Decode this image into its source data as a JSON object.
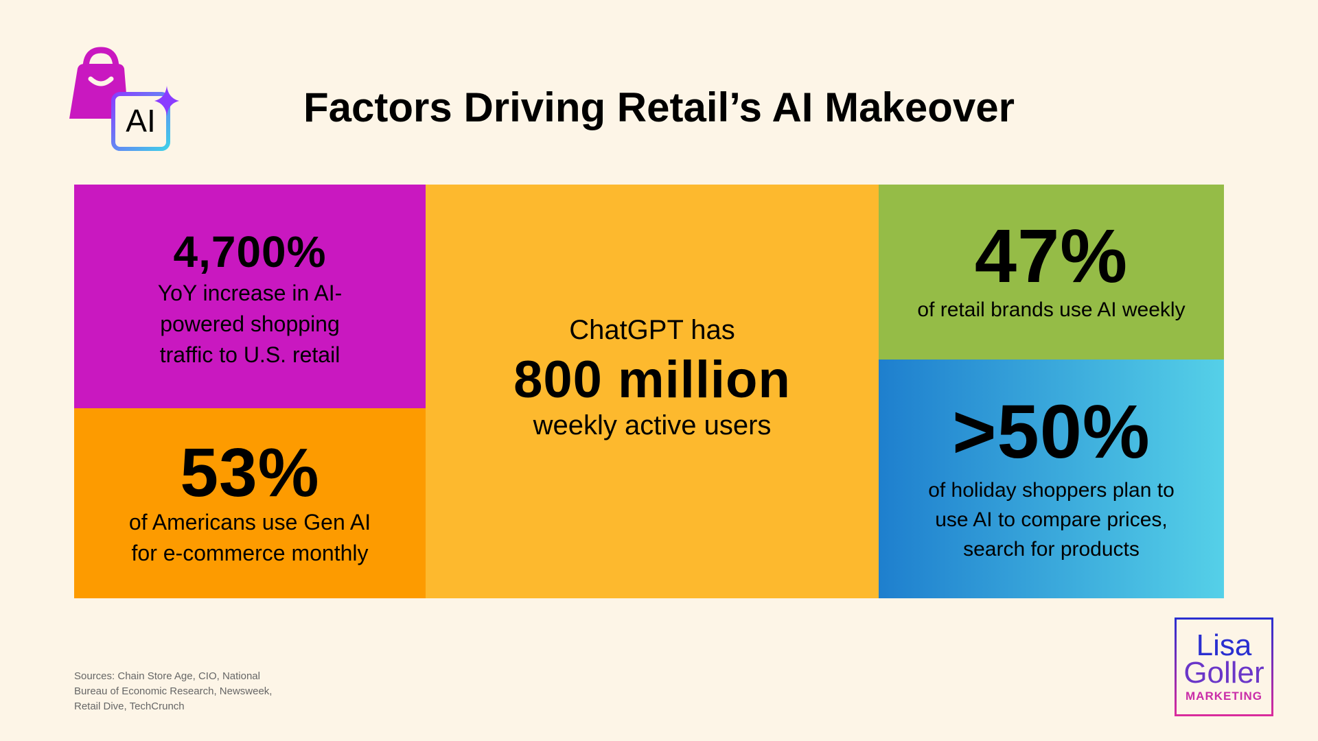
{
  "header": {
    "title": "Factors Driving Retail’s AI Makeover",
    "icon_label": "AI"
  },
  "stats": {
    "traffic": {
      "figure": "4,700%",
      "lines": [
        "YoY increase in AI-",
        "powered shopping",
        "traffic to U.S. retail"
      ]
    },
    "americans": {
      "figure": "53%",
      "lines": [
        "of Americans use Gen AI",
        "for e-commerce monthly"
      ]
    },
    "chatgpt": {
      "lead": "ChatGPT has",
      "figure": "800 million",
      "tail": "weekly active users"
    },
    "brands": {
      "figure": "47%",
      "lines": [
        "of retail brands use AI weekly"
      ]
    },
    "shoppers": {
      "figure": ">50%",
      "lines": [
        "of holiday shoppers plan to",
        "use AI to compare prices,",
        "search for products"
      ]
    }
  },
  "footer": {
    "sources": [
      "Sources: Chain Store Age, CIO, National",
      "Bureau of Economic Research, Newsweek,",
      "Retail Dive, TechCrunch"
    ],
    "logo": [
      "Lisa",
      "Goller",
      "MARKETING"
    ]
  }
}
